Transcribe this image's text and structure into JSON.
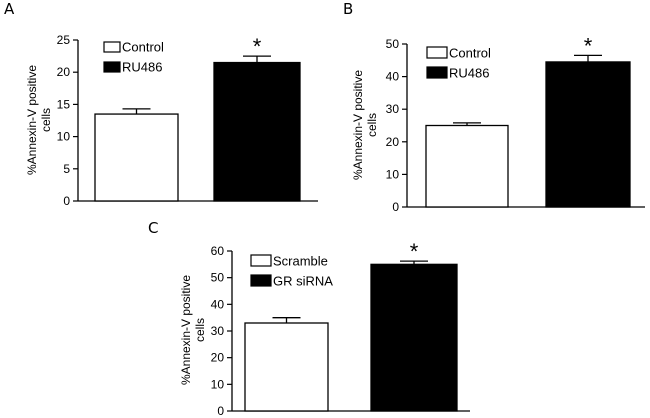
{
  "chart_data": [
    {
      "panel": "A",
      "type": "bar",
      "categories": [
        "Control",
        "RU486"
      ],
      "values": [
        13.5,
        21.5
      ],
      "errors": [
        0.8,
        1.0
      ],
      "fill": [
        "#ffffff",
        "#000000"
      ],
      "significance": [
        "",
        "*"
      ],
      "ylabel_line1": "%Annexin-V positive",
      "ylabel_line2": "cells",
      "ylim": [
        0,
        25
      ],
      "yticks": [
        0,
        5,
        10,
        15,
        20,
        25
      ],
      "legend": [
        "Control",
        "RU486"
      ],
      "legend_position": "top-left"
    },
    {
      "panel": "B",
      "type": "bar",
      "categories": [
        "Control",
        "RU486"
      ],
      "values": [
        25,
        44.5
      ],
      "errors": [
        0.8,
        2.0
      ],
      "fill": [
        "#ffffff",
        "#000000"
      ],
      "significance": [
        "",
        "*"
      ],
      "ylabel_line1": "%Annexin-V positive",
      "ylabel_line2": "cells",
      "ylim": [
        0,
        50
      ],
      "yticks": [
        0,
        10,
        20,
        30,
        40,
        50
      ],
      "legend": [
        "Control",
        "RU486"
      ],
      "legend_position": "top-left"
    },
    {
      "panel": "C",
      "type": "bar",
      "categories": [
        "Scramble",
        "GR siRNA"
      ],
      "values": [
        33,
        55
      ],
      "errors": [
        2.0,
        1.2
      ],
      "fill": [
        "#ffffff",
        "#000000"
      ],
      "significance": [
        "",
        "*"
      ],
      "ylabel_line1": "%Annexin-V positive",
      "ylabel_line2": "cells",
      "ylim": [
        0,
        60
      ],
      "yticks": [
        0,
        10,
        20,
        30,
        40,
        50,
        60
      ],
      "legend": [
        "Scramble",
        "GR siRNA"
      ],
      "legend_position": "top-left"
    }
  ]
}
